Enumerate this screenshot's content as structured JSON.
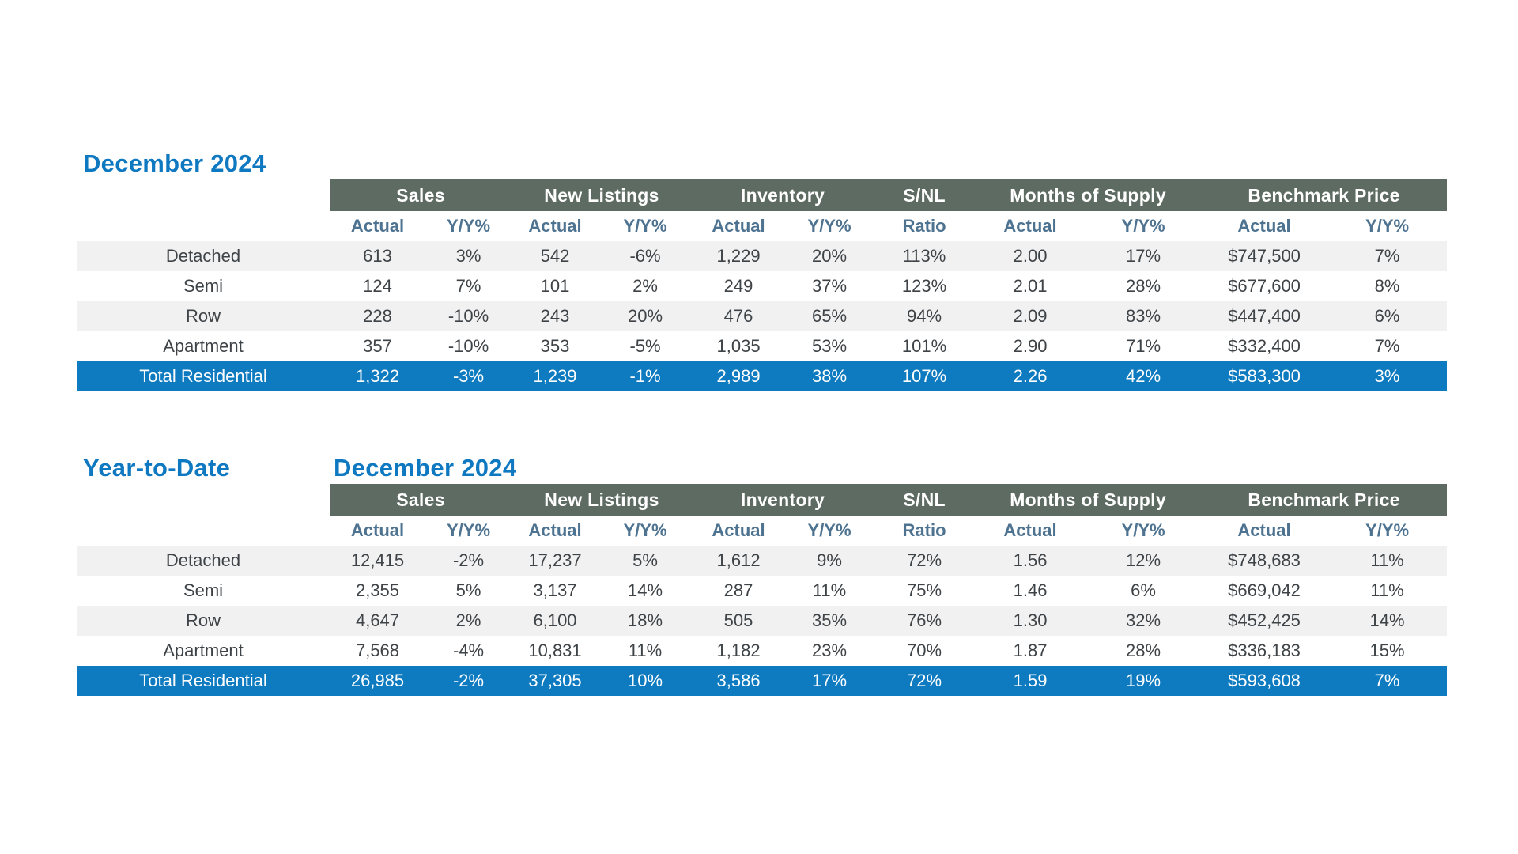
{
  "colors": {
    "accent_blue": "#0e78c0",
    "header_bg": "#5e6b63",
    "total_row_bg": "#0e7abf",
    "stripe_bg": "#f1f1f1",
    "subheader_text": "#4e7391",
    "body_text": "#3e4347"
  },
  "report": {
    "monthly": {
      "title": "December 2024",
      "column_groups": [
        {
          "label": "Sales",
          "span": 2
        },
        {
          "label": "New Listings",
          "span": 2
        },
        {
          "label": "Inventory",
          "span": 2
        },
        {
          "label": "S/NL",
          "span": 1
        },
        {
          "label": "Months of Supply",
          "span": 2
        },
        {
          "label": "Benchmark Price",
          "span": 2
        }
      ],
      "sub_headers": [
        "Actual",
        "Y/Y%",
        "Actual",
        "Y/Y%",
        "Actual",
        "Y/Y%",
        "Ratio",
        "Actual",
        "Y/Y%",
        "Actual",
        "Y/Y%"
      ],
      "rows": [
        {
          "label": "Detached",
          "values": [
            "613",
            "3%",
            "542",
            "-6%",
            "1,229",
            "20%",
            "113%",
            "2.00",
            "17%",
            "$747,500",
            "7%"
          ],
          "total": false
        },
        {
          "label": "Semi",
          "values": [
            "124",
            "7%",
            "101",
            "2%",
            "249",
            "37%",
            "123%",
            "2.01",
            "28%",
            "$677,600",
            "8%"
          ],
          "total": false
        },
        {
          "label": "Row",
          "values": [
            "228",
            "-10%",
            "243",
            "20%",
            "476",
            "65%",
            "94%",
            "2.09",
            "83%",
            "$447,400",
            "6%"
          ],
          "total": false
        },
        {
          "label": "Apartment",
          "values": [
            "357",
            "-10%",
            "353",
            "-5%",
            "1,035",
            "53%",
            "101%",
            "2.90",
            "71%",
            "$332,400",
            "7%"
          ],
          "total": false
        },
        {
          "label": "Total Residential",
          "values": [
            "1,322",
            "-3%",
            "1,239",
            "-1%",
            "2,989",
            "38%",
            "107%",
            "2.26",
            "42%",
            "$583,300",
            "3%"
          ],
          "total": true
        }
      ]
    },
    "ytd": {
      "title_left": "Year-to-Date",
      "title": "December 2024",
      "column_groups": [
        {
          "label": "Sales",
          "span": 2
        },
        {
          "label": "New Listings",
          "span": 2
        },
        {
          "label": "Inventory",
          "span": 2
        },
        {
          "label": "S/NL",
          "span": 1
        },
        {
          "label": "Months of Supply",
          "span": 2
        },
        {
          "label": "Benchmark Price",
          "span": 2
        }
      ],
      "sub_headers": [
        "Actual",
        "Y/Y%",
        "Actual",
        "Y/Y%",
        "Actual",
        "Y/Y%",
        "Ratio",
        "Actual",
        "Y/Y%",
        "Actual",
        "Y/Y%"
      ],
      "rows": [
        {
          "label": "Detached",
          "values": [
            "12,415",
            "-2%",
            "17,237",
            "5%",
            "1,612",
            "9%",
            "72%",
            "1.56",
            "12%",
            "$748,683",
            "11%"
          ],
          "total": false
        },
        {
          "label": "Semi",
          "values": [
            "2,355",
            "5%",
            "3,137",
            "14%",
            "287",
            "11%",
            "75%",
            "1.46",
            "6%",
            "$669,042",
            "11%"
          ],
          "total": false
        },
        {
          "label": "Row",
          "values": [
            "4,647",
            "2%",
            "6,100",
            "18%",
            "505",
            "35%",
            "76%",
            "1.30",
            "32%",
            "$452,425",
            "14%"
          ],
          "total": false
        },
        {
          "label": "Apartment",
          "values": [
            "7,568",
            "-4%",
            "10,831",
            "11%",
            "1,182",
            "23%",
            "70%",
            "1.87",
            "28%",
            "$336,183",
            "15%"
          ],
          "total": false
        },
        {
          "label": "Total Residential",
          "values": [
            "26,985",
            "-2%",
            "37,305",
            "10%",
            "3,586",
            "17%",
            "72%",
            "1.59",
            "19%",
            "$593,608",
            "7%"
          ],
          "total": true
        }
      ]
    }
  }
}
